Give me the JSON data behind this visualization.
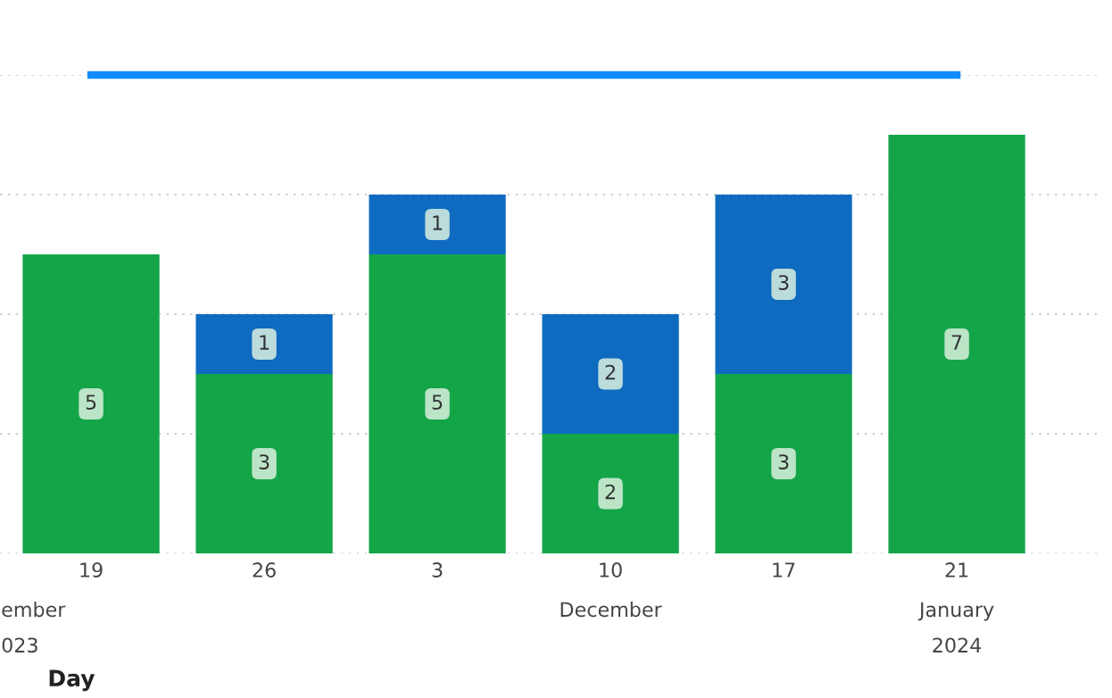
{
  "chart_data": {
    "type": "bar",
    "stacked": true,
    "xlabel": "Day",
    "categories": [
      "19",
      "26",
      "3",
      "10",
      "17",
      "21"
    ],
    "series": [
      {
        "color": "#14a548",
        "values": [
          5,
          3,
          5,
          2,
          3,
          7
        ],
        "value_labels": [
          "5",
          "3",
          "5",
          "2",
          "3",
          "7"
        ]
      },
      {
        "color": "#0f6bc0",
        "values": [
          null,
          1,
          1,
          2,
          3,
          null
        ],
        "value_labels": [
          null,
          "1",
          "1",
          "2",
          "3",
          null
        ]
      },
      {
        "type": "line",
        "color": "#118dff",
        "values": [
          8,
          8,
          8,
          8,
          8,
          8
        ]
      }
    ],
    "ylim": [
      0,
      8
    ],
    "yticks": [
      {
        "value": 0,
        "label": null
      },
      {
        "value": 2,
        "label": null
      },
      {
        "value": 4,
        "label": null
      },
      {
        "value": 6,
        "label": null
      },
      {
        "value": 8,
        "label": null
      }
    ],
    "tick_labels": "x",
    "grid": "y",
    "annotations": [
      "ember",
      "023",
      "December",
      "January",
      "2024"
    ]
  }
}
